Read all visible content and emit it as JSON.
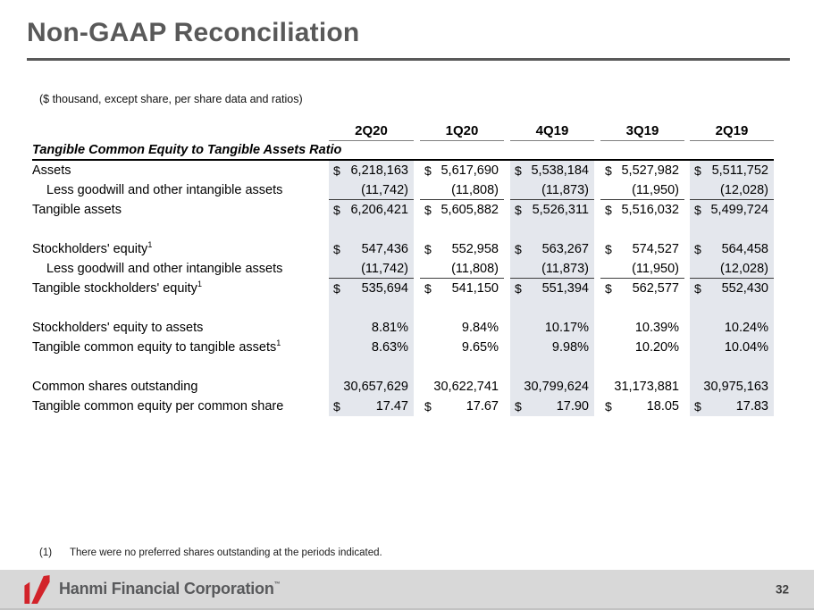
{
  "slide": {
    "title": "Non-GAAP Reconciliation",
    "units_note": "($ thousand, except share, per share data and ratios)",
    "footnote_marker": "(1)",
    "footnote_text": "There were no preferred shares outstanding at the periods indicated.",
    "footer_brand": "Hanmi Financial Corporation",
    "brand_mark": "™",
    "page_number": "32"
  },
  "colors": {
    "accent_red": "#d2232a",
    "title_gray": "#595959",
    "stripe_gray_blue": "#e4e7ed",
    "footer_band_gray": "#d8d8d8",
    "brand_text_gray": "#58595b"
  },
  "table": {
    "section_label": "Tangible Common Equity to Tangible Assets Ratio",
    "columns": [
      "2Q20",
      "1Q20",
      "4Q19",
      "3Q19",
      "2Q19"
    ],
    "shaded_columns": [
      0,
      2,
      4
    ],
    "rows": [
      {
        "spacer": false,
        "label": "Assets",
        "sup": "",
        "indent": false,
        "dollar": true,
        "underline": false,
        "values": [
          "6,218,163",
          "5,617,690",
          "5,538,184",
          "5,527,982",
          "5,511,752"
        ]
      },
      {
        "spacer": false,
        "label": "Less goodwill and other intangible assets",
        "sup": "",
        "indent": true,
        "dollar": false,
        "underline": true,
        "values": [
          "(11,742)",
          "(11,808)",
          "(11,873)",
          "(11,950)",
          "(12,028)"
        ]
      },
      {
        "spacer": false,
        "label": "Tangible assets",
        "sup": "",
        "indent": false,
        "dollar": true,
        "underline": false,
        "values": [
          "6,206,421",
          "5,605,882",
          "5,526,311",
          "5,516,032",
          "5,499,724"
        ]
      },
      {
        "spacer": true,
        "label": "",
        "sup": "",
        "indent": false,
        "dollar": false,
        "underline": false,
        "values": [
          "",
          "",
          "",
          "",
          ""
        ]
      },
      {
        "spacer": false,
        "label": "Stockholders' equity",
        "sup": "1",
        "indent": false,
        "dollar": true,
        "underline": false,
        "values": [
          "547,436",
          "552,958",
          "563,267",
          "574,527",
          "564,458"
        ]
      },
      {
        "spacer": false,
        "label": "Less goodwill and other intangible assets",
        "sup": "",
        "indent": true,
        "dollar": false,
        "underline": true,
        "values": [
          "(11,742)",
          "(11,808)",
          "(11,873)",
          "(11,950)",
          "(12,028)"
        ]
      },
      {
        "spacer": false,
        "label": "Tangible stockholders' equity",
        "sup": "1",
        "indent": false,
        "dollar": true,
        "underline": false,
        "values": [
          "535,694",
          "541,150",
          "551,394",
          "562,577",
          "552,430"
        ]
      },
      {
        "spacer": true,
        "label": "",
        "sup": "",
        "indent": false,
        "dollar": false,
        "underline": false,
        "values": [
          "",
          "",
          "",
          "",
          ""
        ]
      },
      {
        "spacer": false,
        "label": "Stockholders' equity to assets",
        "sup": "",
        "indent": false,
        "dollar": false,
        "underline": false,
        "values": [
          "8.81%",
          "9.84%",
          "10.17%",
          "10.39%",
          "10.24%"
        ]
      },
      {
        "spacer": false,
        "label": "Tangible common equity to tangible assets",
        "sup": "1",
        "indent": false,
        "dollar": false,
        "underline": false,
        "values": [
          "8.63%",
          "9.65%",
          "9.98%",
          "10.20%",
          "10.04%"
        ]
      },
      {
        "spacer": true,
        "label": "",
        "sup": "",
        "indent": false,
        "dollar": false,
        "underline": false,
        "values": [
          "",
          "",
          "",
          "",
          ""
        ]
      },
      {
        "spacer": false,
        "label": "Common shares outstanding",
        "sup": "",
        "indent": false,
        "dollar": false,
        "underline": false,
        "values": [
          "30,657,629",
          "30,622,741",
          "30,799,624",
          "31,173,881",
          "30,975,163"
        ]
      },
      {
        "spacer": false,
        "label": "Tangible common equity per common share",
        "sup": "",
        "indent": false,
        "dollar": true,
        "underline": false,
        "values": [
          "17.47",
          "17.67",
          "17.90",
          "18.05",
          "17.83"
        ]
      }
    ]
  }
}
